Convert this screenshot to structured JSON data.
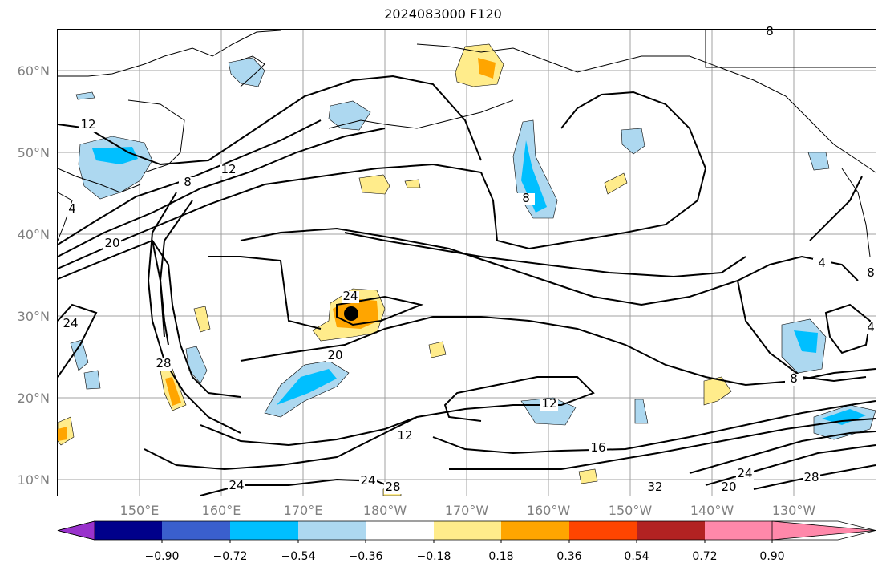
{
  "title": "2024083000 F120",
  "lat_labels": [
    "60°N",
    "50°N",
    "40°N",
    "30°N",
    "20°N",
    "10°N"
  ],
  "lon_labels": [
    "150°E",
    "160°E",
    "170°E",
    "180°W",
    "170°W",
    "160°W",
    "150°W",
    "140°W",
    "130°W"
  ],
  "colorbar": {
    "ticks": [
      "−0.90",
      "−0.72",
      "−0.54",
      "−0.36",
      "−0.18",
      "0.18",
      "0.36",
      "0.54",
      "0.72",
      "0.90"
    ],
    "colors": [
      "#9932cc",
      "#00008b",
      "#3a5fcd",
      "#00bfff",
      "#add8f0",
      "#ffffff",
      "#ffec8b",
      "#ffa500",
      "#ff4500",
      "#b22222",
      "#ff88aa"
    ]
  },
  "contour_labels": [
    "12",
    "8",
    "12",
    "20",
    "4",
    "24",
    "24",
    "28",
    "20",
    "8",
    "12",
    "12",
    "16",
    "24",
    "24",
    "28",
    "32",
    "20",
    "24",
    "28",
    "8",
    "4",
    "8",
    "4",
    "8"
  ],
  "colors": {
    "coastline": "#000000",
    "contour": "#000000",
    "grid": "#a0a0a0",
    "storm_marker": "#000000"
  }
}
